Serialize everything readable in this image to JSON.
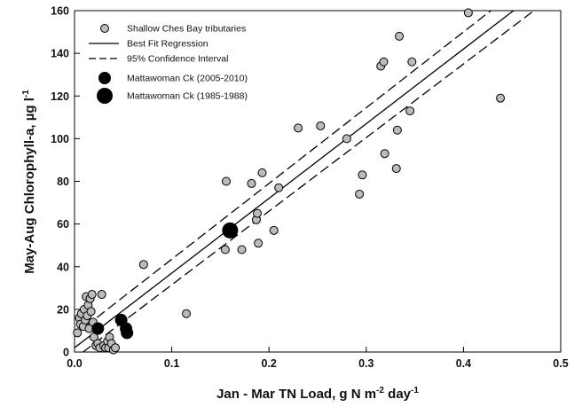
{
  "chart_data": {
    "type": "scatter",
    "xlim": [
      0.0,
      0.5
    ],
    "ylim": [
      0,
      160
    ],
    "x_ticks": [
      0.0,
      0.1,
      0.2,
      0.3,
      0.4,
      0.5
    ],
    "x_tick_labels": [
      "0.0",
      "0.1",
      "0.2",
      "0.3",
      "0.4",
      "0.5"
    ],
    "y_ticks": [
      0,
      20,
      40,
      60,
      80,
      100,
      120,
      140,
      160
    ],
    "y_tick_labels": [
      "0",
      "20",
      "40",
      "60",
      "80",
      "100",
      "120",
      "140",
      "160"
    ],
    "xlabel": {
      "main": "Jan - Mar TN Load, g N m",
      "sup1": "-2",
      "mid": " day",
      "sup2": "-1"
    },
    "ylabel": {
      "main": "May-Aug Chlorophyll-a, µg l",
      "sup": "-1"
    },
    "grid": false,
    "legend_position": "top-left",
    "legend": [
      {
        "label": "Shallow Ches Bay tributaries",
        "kind": "circle-small-gray"
      },
      {
        "label": "Best Fit Regression",
        "kind": "solid-line"
      },
      {
        "label": "95% Confidence Interval",
        "kind": "dashed-line"
      },
      {
        "label": "Mattawoman Ck (2005-2010)",
        "kind": "circle-medium-black"
      },
      {
        "label": "Mattawoman Ck (1985-1988)",
        "kind": "circle-large-black"
      }
    ],
    "series": [
      {
        "name": "Shallow Ches Bay tributaries",
        "color": "#bbbbbb",
        "points": [
          [
            0.003,
            9
          ],
          [
            0.005,
            16
          ],
          [
            0.006,
            13
          ],
          [
            0.007,
            18
          ],
          [
            0.009,
            12
          ],
          [
            0.01,
            20
          ],
          [
            0.011,
            15
          ],
          [
            0.012,
            26
          ],
          [
            0.013,
            17
          ],
          [
            0.014,
            22
          ],
          [
            0.015,
            11
          ],
          [
            0.016,
            25
          ],
          [
            0.017,
            19
          ],
          [
            0.018,
            27
          ],
          [
            0.019,
            14
          ],
          [
            0.02,
            7
          ],
          [
            0.022,
            3
          ],
          [
            0.024,
            4
          ],
          [
            0.026,
            2
          ],
          [
            0.028,
            27
          ],
          [
            0.03,
            3
          ],
          [
            0.032,
            2
          ],
          [
            0.034,
            5
          ],
          [
            0.035,
            2
          ],
          [
            0.036,
            7
          ],
          [
            0.038,
            4
          ],
          [
            0.04,
            1
          ],
          [
            0.042,
            2
          ],
          [
            0.071,
            41
          ],
          [
            0.115,
            18
          ],
          [
            0.155,
            48
          ],
          [
            0.156,
            80
          ],
          [
            0.172,
            48
          ],
          [
            0.182,
            79
          ],
          [
            0.187,
            62
          ],
          [
            0.188,
            65
          ],
          [
            0.189,
            51
          ],
          [
            0.193,
            84
          ],
          [
            0.205,
            57
          ],
          [
            0.21,
            77
          ],
          [
            0.23,
            105
          ],
          [
            0.253,
            106
          ],
          [
            0.28,
            100
          ],
          [
            0.293,
            74
          ],
          [
            0.296,
            83
          ],
          [
            0.315,
            134
          ],
          [
            0.318,
            136
          ],
          [
            0.319,
            93
          ],
          [
            0.331,
            86
          ],
          [
            0.332,
            104
          ],
          [
            0.334,
            148
          ],
          [
            0.345,
            113
          ],
          [
            0.347,
            136
          ],
          [
            0.405,
            159
          ],
          [
            0.438,
            119
          ]
        ]
      },
      {
        "name": "Mattawoman Ck (2005-2010)",
        "color": "#000000",
        "points": [
          [
            0.024,
            11
          ],
          [
            0.048,
            15
          ],
          [
            0.053,
            11
          ],
          [
            0.054,
            9
          ]
        ]
      },
      {
        "name": "Mattawoman Ck (1985-1988)",
        "color": "#000000",
        "points": [
          [
            0.16,
            57
          ]
        ]
      }
    ],
    "regression": {
      "name": "Best Fit Regression",
      "slope": 350,
      "intercept": 2,
      "confidence": {
        "name": "95% Confidence Interval",
        "upper": {
          "slope": 355,
          "intercept": 8
        },
        "lower": {
          "slope": 345,
          "intercept": -3
        }
      }
    }
  }
}
